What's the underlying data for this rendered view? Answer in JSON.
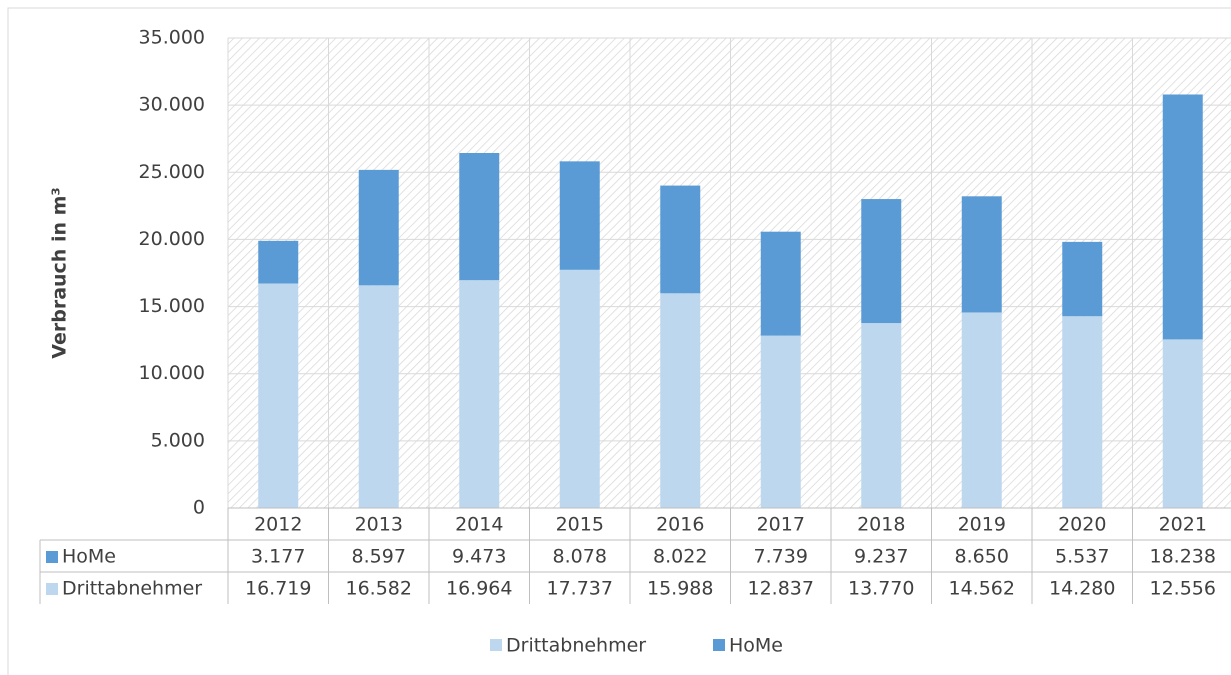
{
  "chart_data": {
    "type": "stacked_bar",
    "y_label": "Verbrauch in m³",
    "categories": [
      "2012",
      "2013",
      "2014",
      "2015",
      "2016",
      "2017",
      "2018",
      "2019",
      "2020",
      "2021"
    ],
    "series": [
      {
        "name": "Drittabnehmer",
        "color": "#bdd7ee",
        "values": [
          16719,
          16582,
          16964,
          17737,
          15988,
          12837,
          13770,
          14562,
          14280,
          12556
        ],
        "value_labels": [
          "16.719",
          "16.582",
          "16.964",
          "17.737",
          "15.988",
          "12.837",
          "13.770",
          "14.562",
          "14.280",
          "12.556"
        ]
      },
      {
        "name": "HoMe",
        "color": "#5b9bd5",
        "values": [
          3177,
          8597,
          9473,
          8078,
          8022,
          7739,
          9237,
          8650,
          5537,
          18238
        ],
        "value_labels": [
          "3.177",
          "8.597",
          "9.473",
          "8.078",
          "8.022",
          "7.739",
          "9.237",
          "8.650",
          "5.537",
          "18.238"
        ]
      }
    ],
    "ylim": [
      0,
      35000
    ],
    "yticks": [
      0,
      {
        "value": 5000,
        "label": "5.000"
      },
      {
        "value": 10000,
        "label": "10.000"
      },
      {
        "value": 15000,
        "label": "15.000"
      },
      {
        "value": 20000,
        "label": "20.000"
      },
      {
        "value": 25000,
        "label": "25.000"
      },
      {
        "value": 30000,
        "label": "30.000"
      },
      {
        "value": 35000,
        "label": "35.000"
      }
    ],
    "grid": true,
    "legend": "bottom"
  }
}
